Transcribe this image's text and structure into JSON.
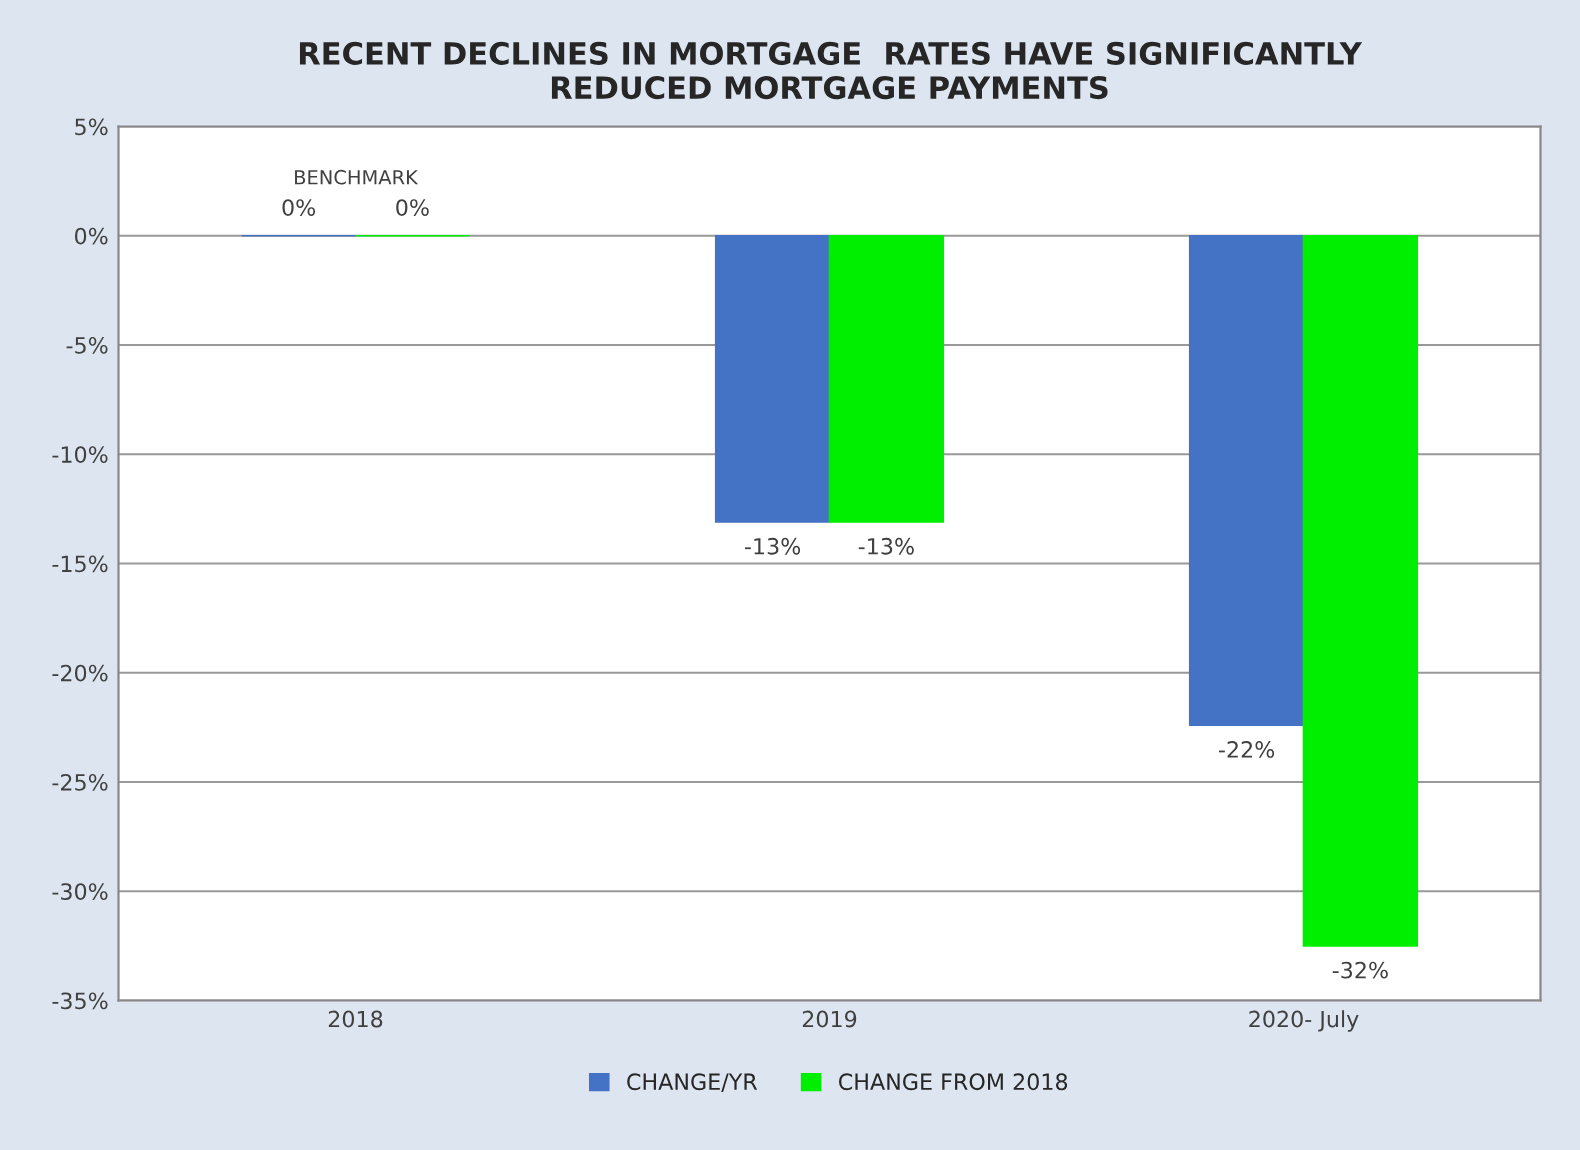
{
  "chart_data": {
    "type": "bar",
    "title": "RECENT DECLINES IN MORTGAGE  RATES HAVE SIGNIFICANTLY\nREDUCED MORTGAGE PAYMENTS",
    "categories": [
      "2018",
      "2019",
      "2020- July"
    ],
    "series": [
      {
        "name": "CHANGE/YR",
        "color": "#4472c4",
        "values": [
          0,
          -13.1,
          -22.4
        ],
        "value_labels": [
          "0%",
          "-13%",
          "-22%"
        ]
      },
      {
        "name": "CHANGE FROM 2018",
        "color": "#00ee00",
        "values": [
          0,
          -13.1,
          -32.5
        ],
        "value_labels": [
          "0%",
          "-13%",
          "-32%"
        ]
      }
    ],
    "annotations": [
      "BENCHMARK"
    ],
    "ylim": [
      -35,
      5
    ],
    "yticks": [
      {
        "value": 5,
        "label": "5%"
      },
      {
        "value": 0,
        "label": "0%"
      },
      {
        "value": -5,
        "label": "-5%"
      },
      {
        "value": -10,
        "label": "-10%"
      },
      {
        "value": -15,
        "label": "-15%"
      },
      {
        "value": -20,
        "label": "-20%"
      },
      {
        "value": -25,
        "label": "-25%"
      },
      {
        "value": -30,
        "label": "-30%"
      },
      {
        "value": -35,
        "label": "-35%"
      }
    ],
    "grid": "y",
    "legend": "bottom"
  }
}
